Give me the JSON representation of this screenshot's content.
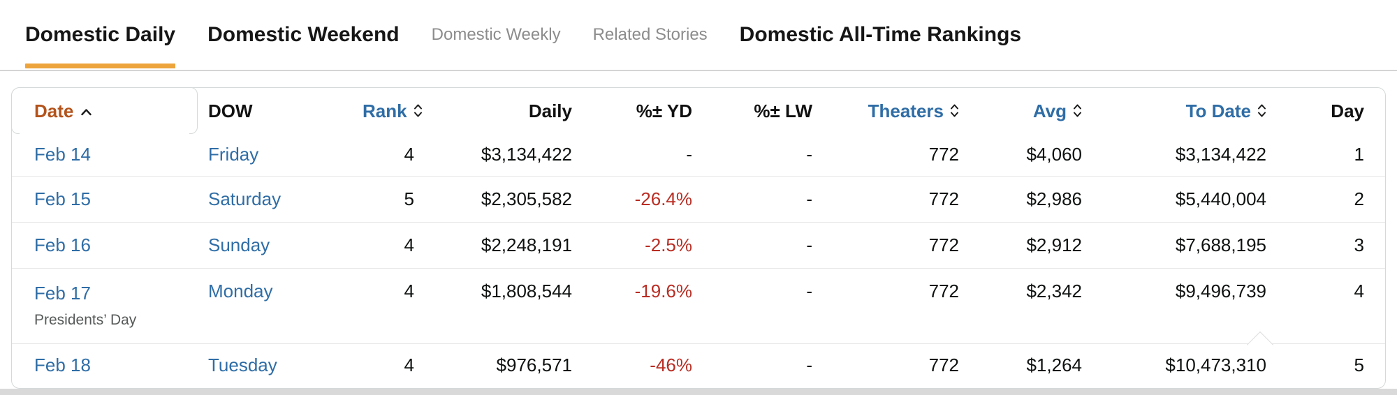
{
  "tabs": [
    {
      "label": "Domestic Daily",
      "state": "active"
    },
    {
      "label": "Domestic Weekend",
      "state": "normal"
    },
    {
      "label": "Domestic Weekly",
      "state": "muted"
    },
    {
      "label": "Related Stories",
      "state": "muted"
    },
    {
      "label": "Domestic All-Time Rankings",
      "state": "normal"
    }
  ],
  "colors": {
    "accent_orange": "#EDA43C",
    "sorted_header_orange": "#B3531B",
    "link_blue": "#2F6DA6",
    "negative_red": "#B92D23",
    "border_gray": "#D5D9D9"
  },
  "table": {
    "columns": [
      {
        "label": "Date",
        "sortable": true,
        "sorted": "asc",
        "align": "left"
      },
      {
        "label": "DOW",
        "sortable": false,
        "sorted": null,
        "align": "left"
      },
      {
        "label": "Rank",
        "sortable": true,
        "sorted": null,
        "align": "right"
      },
      {
        "label": "Daily",
        "sortable": false,
        "sorted": null,
        "align": "right"
      },
      {
        "label": "%± YD",
        "sortable": false,
        "sorted": null,
        "align": "right"
      },
      {
        "label": "%± LW",
        "sortable": false,
        "sorted": null,
        "align": "right"
      },
      {
        "label": "Theaters",
        "sortable": true,
        "sorted": null,
        "align": "right"
      },
      {
        "label": "Avg",
        "sortable": true,
        "sorted": null,
        "align": "right"
      },
      {
        "label": "To Date",
        "sortable": true,
        "sorted": null,
        "align": "right"
      },
      {
        "label": "Day",
        "sortable": false,
        "sorted": null,
        "align": "right"
      }
    ],
    "rows": [
      {
        "date": "Feb 14",
        "note": "",
        "dow": "Friday",
        "rank": "4",
        "daily": "$3,134,422",
        "pct_yd": "-",
        "pct_lw": "-",
        "theaters": "772",
        "avg": "$4,060",
        "to_date": "$3,134,422",
        "day": "1"
      },
      {
        "date": "Feb 15",
        "note": "",
        "dow": "Saturday",
        "rank": "5",
        "daily": "$2,305,582",
        "pct_yd": "-26.4%",
        "pct_lw": "-",
        "theaters": "772",
        "avg": "$2,986",
        "to_date": "$5,440,004",
        "day": "2"
      },
      {
        "date": "Feb 16",
        "note": "",
        "dow": "Sunday",
        "rank": "4",
        "daily": "$2,248,191",
        "pct_yd": "-2.5%",
        "pct_lw": "-",
        "theaters": "772",
        "avg": "$2,912",
        "to_date": "$7,688,195",
        "day": "3"
      },
      {
        "date": "Feb 17",
        "note": "Presidents’ Day",
        "dow": "Monday",
        "rank": "4",
        "daily": "$1,808,544",
        "pct_yd": "-19.6%",
        "pct_lw": "-",
        "theaters": "772",
        "avg": "$2,342",
        "to_date": "$9,496,739",
        "day": "4"
      },
      {
        "date": "Feb 18",
        "note": "",
        "dow": "Tuesday",
        "rank": "4",
        "daily": "$976,571",
        "pct_yd": "-46%",
        "pct_lw": "-",
        "theaters": "772",
        "avg": "$1,264",
        "to_date": "$10,473,310",
        "day": "5"
      }
    ]
  }
}
